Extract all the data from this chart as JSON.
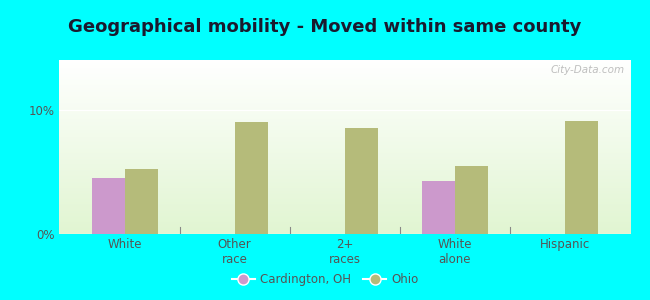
{
  "title": "Geographical mobility - Moved within same county",
  "categories": [
    "White",
    "Other\nrace",
    "2+\nraces",
    "White\nalone",
    "Hispanic"
  ],
  "cardington_values": [
    4.5,
    null,
    null,
    4.3,
    null
  ],
  "ohio_values": [
    5.2,
    9.0,
    8.5,
    5.5,
    9.1
  ],
  "cardington_color": "#cc99cc",
  "ohio_color": "#b5bb7a",
  "background_color": "#00ffff",
  "ylim": [
    0,
    14
  ],
  "yticks": [
    0,
    10
  ],
  "ytick_labels": [
    "0%",
    "10%"
  ],
  "bar_width": 0.3,
  "legend_cardington": "Cardington, OH",
  "legend_ohio": "Ohio",
  "title_fontsize": 13,
  "watermark": "City-Data.com"
}
